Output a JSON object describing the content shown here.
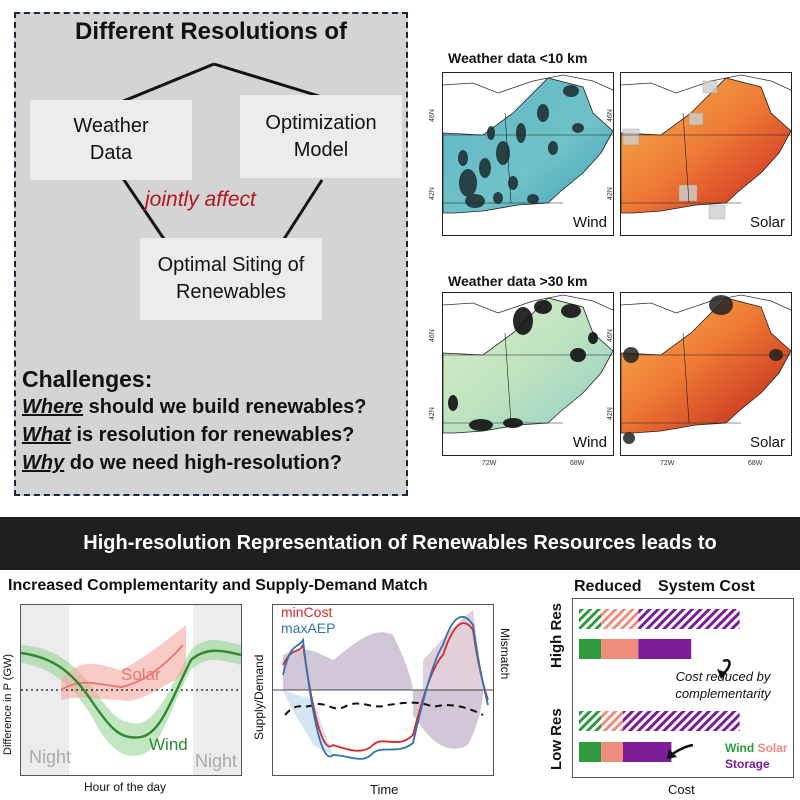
{
  "left_panel": {
    "heading": "Different Resolutions of",
    "box_weather": "Weather Data",
    "box_model": "Optimization Model",
    "jointly": "jointly affect",
    "box_siting": "Optimal Siting of Renewables",
    "challenges_title": "Challenges:",
    "challenges": [
      {
        "key": "Where",
        "rest": " should we build renewables?"
      },
      {
        "key": "What",
        "rest": " is resolution for renewables?"
      },
      {
        "key": "Why",
        "rest": " do we need high-resolution?"
      }
    ]
  },
  "maps": {
    "title_high": "Weather data <10 km",
    "title_low": "Weather data >30 km",
    "label_wind": "Wind",
    "label_solar": "Solar",
    "lat_46": "46N",
    "lat_42": "42N",
    "lon_72": "72W",
    "lon_68": "68W"
  },
  "banner": {
    "text": "High-resolution Representation of Renewables Resources leads to"
  },
  "bottom_left": {
    "title": "Increased Complementarity and Supply-Demand Match",
    "ylabel": "Difference in P (GW)",
    "xlabel": "Hour of the day",
    "solar": "Solar",
    "wind": "Wind",
    "night": "Night"
  },
  "bottom_mid": {
    "mincost": "minCost",
    "maxaep": "maxAEP",
    "ylabel_left": "Supply/Demand",
    "ylabel_right": "Mismatch",
    "xlabel": "Time"
  },
  "bottom_right": {
    "title_a": "Reduced",
    "title_b": "System Cost",
    "high_res": "High Res",
    "low_res": "Low Res",
    "note": "Cost reduced by complementarity",
    "legend_wind": "Wind",
    "legend_solar": "Solar",
    "legend_storage": "Storage",
    "xlabel": "Cost",
    "bars": {
      "high_hatched": [
        {
          "type": "wind",
          "value": 0.1
        },
        {
          "type": "solar",
          "value": 0.17
        },
        {
          "type": "storage",
          "value": 0.46
        }
      ],
      "high_solid": [
        {
          "type": "wind",
          "value": 0.1
        },
        {
          "type": "solar",
          "value": 0.17
        },
        {
          "type": "storage",
          "value": 0.24
        }
      ],
      "low_hatched": [
        {
          "type": "wind",
          "value": 0.1
        },
        {
          "type": "solar",
          "value": 0.1
        },
        {
          "type": "storage",
          "value": 0.53
        }
      ],
      "low_solid": [
        {
          "type": "wind",
          "value": 0.1
        },
        {
          "type": "solar",
          "value": 0.1
        },
        {
          "type": "storage",
          "value": 0.22
        }
      ]
    }
  },
  "colors": {
    "wind": "#2e9a3e",
    "solar": "#f08c7c",
    "storage": "#7a1d96"
  }
}
